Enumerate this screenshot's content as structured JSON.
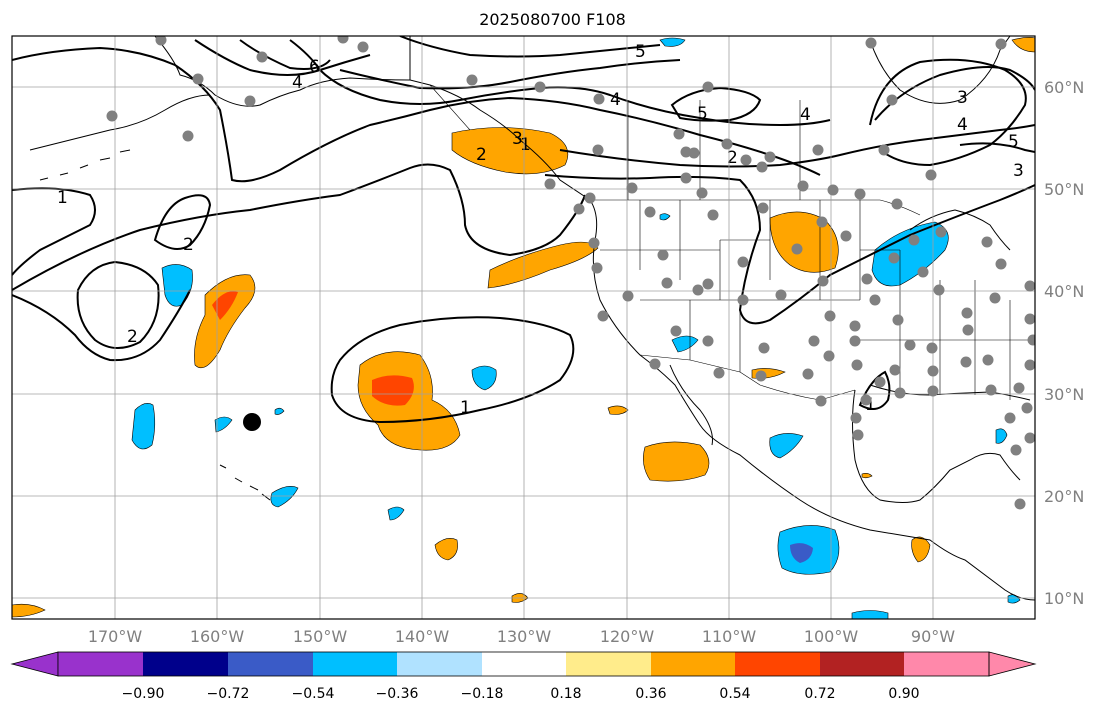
{
  "title": "2025080700 F108",
  "map": {
    "longitude_labels": [
      "170°W",
      "160°W",
      "150°W",
      "140°W",
      "130°W",
      "120°W",
      "110°W",
      "100°W",
      "90°W"
    ],
    "latitude_labels": [
      "60°N",
      "50°N",
      "40°N",
      "30°N",
      "20°N",
      "10°N"
    ],
    "contour_labels": [
      "1",
      "2",
      "2",
      "1",
      "2",
      "3",
      "4",
      "5",
      "6",
      "4",
      "5",
      "4",
      "2",
      "3",
      "4",
      "5",
      "3",
      "1",
      "1"
    ],
    "station_marker_color": "#808080",
    "storm_marker_color": "#000000"
  },
  "colorbar": {
    "ticks": [
      "−0.90",
      "−0.72",
      "−0.54",
      "−0.36",
      "−0.18",
      "0.18",
      "0.36",
      "0.54",
      "0.72",
      "0.90"
    ],
    "colors": [
      "#9932CC",
      "#00008B",
      "#3A5BC7",
      "#00BFFF",
      "#B0E2FF",
      "#FFFFFF",
      "#FFEC8B",
      "#FFA500",
      "#FF4500",
      "#B22222",
      "#FF88AA"
    ]
  },
  "chart_data": {
    "type": "heatmap",
    "title": "2025080700 F108",
    "lon_range": [
      -180,
      -80
    ],
    "lat_range": [
      8,
      65
    ],
    "legend": "colorbar-bottom",
    "grid": true
  }
}
